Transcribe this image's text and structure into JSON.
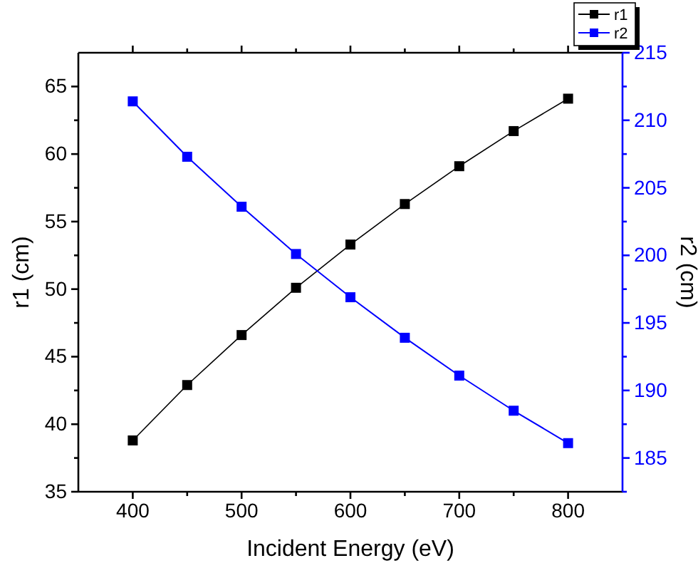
{
  "chart_data": {
    "type": "line",
    "xlabel": "Incident Energy (eV)",
    "ylabel": "r1 (cm)",
    "y2label": "r2 (cm)",
    "x": [
      400,
      450,
      500,
      550,
      600,
      650,
      700,
      750,
      800
    ],
    "series": [
      {
        "name": "r1",
        "color": "#000000",
        "values": [
          38.8,
          42.9,
          46.6,
          50.1,
          53.3,
          56.3,
          59.1,
          61.7,
          64.1
        ]
      },
      {
        "name": "r2",
        "color": "#0000ff",
        "axis": "y2",
        "values": [
          211.4,
          207.3,
          203.6,
          200.1,
          196.9,
          193.9,
          191.1,
          188.5,
          186.1
        ]
      }
    ],
    "xlim": [
      350,
      850
    ],
    "xticks": [
      400,
      {
        "value": 450,
        "label": null
      },
      500,
      {
        "value": 550,
        "label": null
      },
      600,
      {
        "value": 650,
        "label": null
      },
      700,
      {
        "value": 750,
        "label": null
      },
      800
    ],
    "ylim": [
      35,
      67.5
    ],
    "yticks": [
      35,
      {
        "value": 37.5,
        "label": null
      },
      40,
      {
        "value": 42.5,
        "label": null
      },
      45,
      {
        "value": 47.5,
        "label": null
      },
      50,
      {
        "value": 52.5,
        "label": null
      },
      55,
      {
        "value": 57.5,
        "label": null
      },
      60,
      {
        "value": 62.5,
        "label": null
      },
      65
    ],
    "y2lim": [
      182.5,
      215
    ],
    "y2ticks": [
      {
        "value": 182.5,
        "label": null
      },
      185,
      {
        "value": 187.5,
        "label": null
      },
      190,
      {
        "value": 192.5,
        "label": null
      },
      195,
      {
        "value": 197.5,
        "label": null
      },
      200,
      {
        "value": 202.5,
        "label": null
      },
      205,
      {
        "value": 207.5,
        "label": null
      },
      210,
      {
        "value": 212.5,
        "label": null
      },
      215
    ],
    "marker": "square",
    "grid": false,
    "legend": "top right"
  }
}
